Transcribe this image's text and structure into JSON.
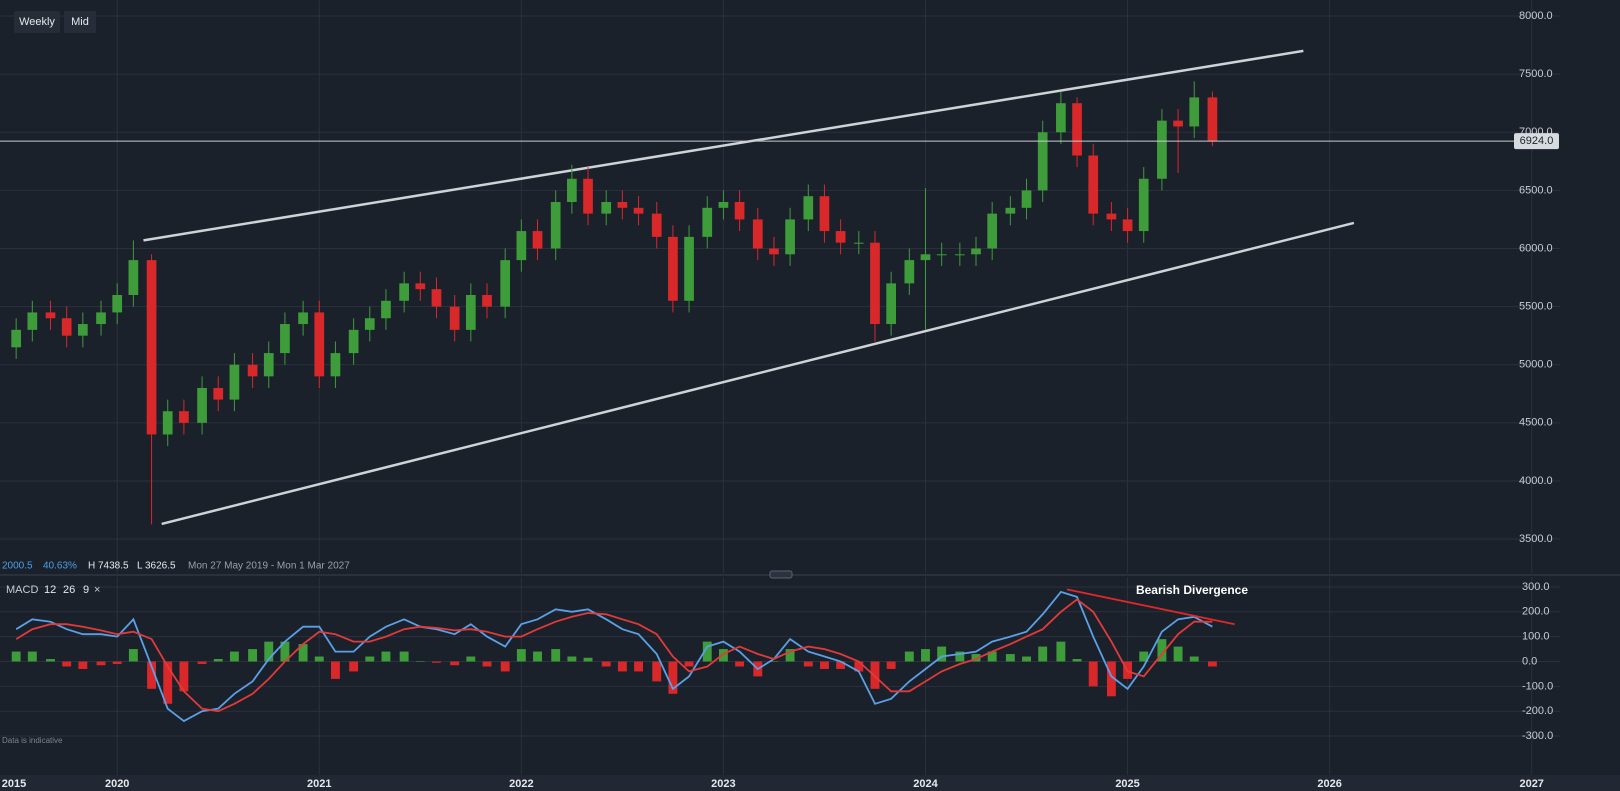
{
  "toolbar": {
    "buttons": [
      "Weekly",
      "Mid"
    ]
  },
  "footer_note": "Data is indicative",
  "chart_data": [
    {
      "type": "candlestick",
      "info": {
        "change": "2000.5",
        "change_pct": "40.63%",
        "high": "H 7438.5",
        "low": "L 3626.5",
        "range": "Mon 27 May 2019 - Mon 1 Mar 2027"
      },
      "xlim": [
        2019.42,
        2027.14
      ],
      "ylim": [
        3208,
        8138
      ],
      "yticks": [
        {
          "value": 8000,
          "label": "8000.0"
        },
        {
          "value": 7500,
          "label": "7500.0"
        },
        {
          "value": 7000,
          "label": "7000.0"
        },
        {
          "value": 6500,
          "label": "6500.0"
        },
        {
          "value": 6000,
          "label": "6000.0"
        },
        {
          "value": 5500,
          "label": "5500.0"
        },
        {
          "value": 5000,
          "label": "5000.0"
        },
        {
          "value": 4500,
          "label": "4500.0"
        },
        {
          "value": 4000,
          "label": "4000.0"
        },
        {
          "value": 3500,
          "label": "3500.0"
        }
      ],
      "grid": true,
      "up_color": "#3f9c3a",
      "down_color": "#d8282a",
      "x": [
        2019.5,
        2019.58,
        2019.67,
        2019.75,
        2019.83,
        2019.92,
        2020.0,
        2020.08,
        2020.17,
        2020.25,
        2020.33,
        2020.42,
        2020.5,
        2020.58,
        2020.67,
        2020.75,
        2020.83,
        2020.92,
        2021.0,
        2021.08,
        2021.17,
        2021.25,
        2021.33,
        2021.42,
        2021.5,
        2021.58,
        2021.67,
        2021.75,
        2021.83,
        2021.92,
        2022.0,
        2022.08,
        2022.17,
        2022.25,
        2022.33,
        2022.42,
        2022.5,
        2022.58,
        2022.67,
        2022.75,
        2022.83,
        2022.92,
        2023.0,
        2023.08,
        2023.17,
        2023.25,
        2023.33,
        2023.42,
        2023.5,
        2023.58,
        2023.67,
        2023.75,
        2023.83,
        2023.92,
        2024.0,
        2024.08,
        2024.17,
        2024.25,
        2024.33,
        2024.42,
        2024.5,
        2024.58,
        2024.67,
        2024.75,
        2024.83,
        2024.92,
        2025.0,
        2025.08,
        2025.17,
        2025.25,
        2025.33,
        2025.42
      ],
      "open": [
        5150,
        5300,
        5450,
        5400,
        5250,
        5350,
        5450,
        5600,
        5900,
        4400,
        4600,
        4500,
        4800,
        4700,
        5000,
        4900,
        5100,
        5350,
        5450,
        4900,
        5100,
        5300,
        5400,
        5550,
        5700,
        5650,
        5500,
        5300,
        5600,
        5500,
        5900,
        6150,
        6000,
        6400,
        6600,
        6300,
        6400,
        6350,
        6300,
        6100,
        5550,
        6100,
        6350,
        6400,
        6250,
        6000,
        5950,
        6250,
        6450,
        6150,
        6050,
        6050,
        5350,
        5700,
        5900,
        5950,
        5950,
        5950,
        6000,
        6300,
        6350,
        6500,
        7000,
        7250,
        6800,
        6300,
        6250,
        6150,
        6600,
        7100,
        7050,
        7300
      ],
      "high": [
        5400,
        5550,
        5550,
        5500,
        5450,
        5550,
        5700,
        6070,
        5950,
        4700,
        4700,
        4900,
        4900,
        5100,
        5100,
        5200,
        5450,
        5550,
        5550,
        5200,
        5400,
        5500,
        5650,
        5800,
        5800,
        5750,
        5600,
        5700,
        5700,
        6000,
        6250,
        6250,
        6500,
        6720,
        6700,
        6500,
        6500,
        6450,
        6400,
        6200,
        6200,
        6450,
        6500,
        6500,
        6350,
        6100,
        6350,
        6550,
        6550,
        6250,
        6150,
        6150,
        5800,
        6000,
        6520,
        6050,
        6050,
        6100,
        6400,
        6450,
        6600,
        7100,
        7350,
        7300,
        6900,
        6400,
        6350,
        6700,
        7200,
        7200,
        7438.5,
        7350
      ],
      "low": [
        5050,
        5200,
        5300,
        5150,
        5150,
        5250,
        5350,
        5500,
        3626.5,
        4300,
        4400,
        4400,
        4600,
        4600,
        4800,
        4800,
        5000,
        5250,
        4800,
        4800,
        5000,
        5200,
        5300,
        5450,
        5550,
        5400,
        5200,
        5200,
        5400,
        5400,
        5800,
        5900,
        5900,
        6300,
        6200,
        6200,
        6250,
        6200,
        6000,
        5450,
        5450,
        6000,
        6250,
        6150,
        5900,
        5850,
        5850,
        6150,
        6050,
        5950,
        5950,
        5200,
        5250,
        5600,
        5300,
        5850,
        5850,
        5850,
        5900,
        6200,
        6250,
        6400,
        6900,
        6700,
        6200,
        6150,
        6050,
        6050,
        6500,
        6650,
        6950,
        6880
      ],
      "close": [
        5300,
        5450,
        5400,
        5250,
        5350,
        5450,
        5600,
        5900,
        4400,
        4600,
        4500,
        4800,
        4700,
        5000,
        4900,
        5100,
        5350,
        5450,
        4900,
        5100,
        5300,
        5400,
        5550,
        5700,
        5650,
        5500,
        5300,
        5600,
        5500,
        5900,
        6150,
        6000,
        6400,
        6600,
        6300,
        6400,
        6350,
        6300,
        6100,
        5550,
        6100,
        6350,
        6400,
        6250,
        6000,
        5950,
        6250,
        6450,
        6150,
        6050,
        6050,
        5350,
        5700,
        5900,
        5950,
        5950,
        5950,
        6000,
        6300,
        6350,
        6500,
        7000,
        7250,
        6800,
        6300,
        6250,
        6150,
        6600,
        7100,
        7050,
        7300,
        6924
      ],
      "last_price": 6924,
      "last_price_label": "6924.0",
      "trendlines": [
        {
          "x": [
            2020.13,
            2025.87
          ],
          "y": [
            6070,
            7700
          ]
        },
        {
          "x": [
            2020.22,
            2026.12
          ],
          "y": [
            3630,
            6220
          ]
        }
      ]
    },
    {
      "type": "macd",
      "name": "MACD",
      "params": [
        "12",
        "26",
        "9"
      ],
      "xlim": [
        2019.42,
        2027.14
      ],
      "x_start_label": "2015",
      "xticks": [
        2020,
        2021,
        2022,
        2023,
        2024,
        2025,
        2026,
        2027
      ],
      "ylim": [
        -340,
        340
      ],
      "yticks": [
        {
          "value": 300,
          "label": "300.0"
        },
        {
          "value": 200,
          "label": "200.0"
        },
        {
          "value": 100,
          "label": "100.0"
        },
        {
          "value": 0,
          "label": "0.0"
        },
        {
          "value": -100,
          "label": "-100.0"
        },
        {
          "value": -200,
          "label": "-200.0"
        },
        {
          "value": -300,
          "label": "-300.0"
        }
      ],
      "series": [
        {
          "name": "MACD",
          "color": "#5aa0e6",
          "values": [
            130,
            170,
            160,
            130,
            110,
            110,
            100,
            170,
            -20,
            -190,
            -240,
            -200,
            -190,
            -130,
            -80,
            10,
            80,
            140,
            140,
            40,
            40,
            100,
            140,
            170,
            140,
            130,
            110,
            150,
            100,
            60,
            150,
            170,
            210,
            200,
            210,
            170,
            130,
            110,
            30,
            -110,
            -60,
            60,
            80,
            40,
            -30,
            10,
            90,
            40,
            20,
            0,
            -40,
            -170,
            -150,
            -80,
            -30,
            20,
            30,
            40,
            80,
            100,
            120,
            190,
            280,
            260,
            100,
            -60,
            -110,
            -20,
            120,
            170,
            180,
            140
          ]
        },
        {
          "name": "Signal",
          "color": "#e03a3a",
          "values": [
            90,
            130,
            150,
            150,
            140,
            125,
            110,
            120,
            90,
            -20,
            -120,
            -190,
            -200,
            -170,
            -130,
            -70,
            0,
            70,
            120,
            110,
            80,
            80,
            100,
            130,
            140,
            135,
            125,
            130,
            120,
            100,
            100,
            130,
            160,
            180,
            195,
            190,
            170,
            150,
            110,
            20,
            -40,
            -20,
            30,
            60,
            30,
            10,
            40,
            60,
            50,
            30,
            0,
            -60,
            -120,
            -120,
            -80,
            -40,
            -10,
            10,
            40,
            70,
            100,
            130,
            200,
            250,
            200,
            80,
            -40,
            -60,
            30,
            110,
            160,
            160
          ]
        }
      ],
      "histogram": [
        40,
        40,
        10,
        -20,
        -30,
        -15,
        -10,
        50,
        -110,
        -170,
        -120,
        -10,
        10,
        40,
        50,
        80,
        80,
        70,
        20,
        -70,
        -40,
        20,
        40,
        40,
        0,
        -5,
        -15,
        20,
        -20,
        -40,
        50,
        40,
        50,
        20,
        15,
        -20,
        -40,
        -40,
        -80,
        -130,
        -20,
        80,
        50,
        -20,
        -60,
        0,
        50,
        -20,
        -30,
        -30,
        -40,
        -110,
        -30,
        40,
        50,
        60,
        40,
        30,
        40,
        30,
        20,
        60,
        80,
        10,
        -100,
        -140,
        -70,
        40,
        90,
        60,
        20,
        -20
      ],
      "annotation": {
        "text": "Bearish Divergence",
        "x": [
          2024.7,
          2025.53
        ],
        "y": [
          290,
          150
        ],
        "color": "#e02828"
      }
    }
  ]
}
